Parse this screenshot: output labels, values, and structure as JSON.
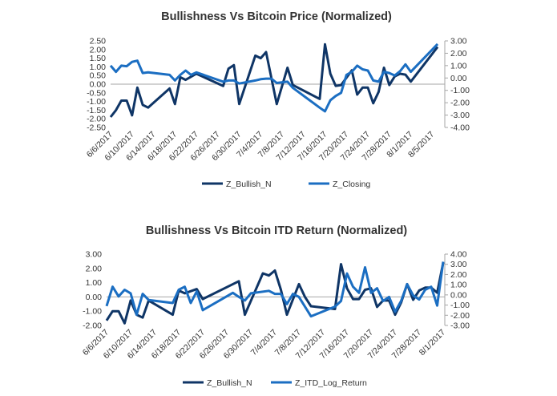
{
  "colors": {
    "bullish": "#0f3566",
    "second": "#1b6ec2",
    "axis": "#a6a6a6"
  },
  "chart_data": [
    {
      "type": "line",
      "title": "Bullishness Vs Bitcoin Price (Normalized)",
      "xlim": [
        "6/6/2017",
        "8/6/2017"
      ],
      "x_ticks": [
        "6/6/2017",
        "6/10/2017",
        "6/14/2017",
        "6/18/2017",
        "6/22/2017",
        "6/26/2017",
        "6/30/2017",
        "7/4/2017",
        "7/8/2017",
        "7/12/2017",
        "7/16/2017",
        "7/20/2017",
        "7/24/2017",
        "7/28/2017",
        "8/1/2017",
        "8/5/2017"
      ],
      "y_left": {
        "lim": [
          -2.5,
          2.5
        ],
        "ticks": [
          "2.50",
          "2.00",
          "1.50",
          "1.00",
          "0.50",
          "0.00",
          "-0.50",
          "-1.00",
          "-1.50",
          "-2.00",
          "-2.50"
        ]
      },
      "y_right": {
        "lim": [
          -4,
          3
        ],
        "ticks": [
          "3.00",
          "2.00",
          "1.00",
          "0.00",
          "-1.00",
          "-2.00",
          "-3.00",
          "-4.00"
        ]
      },
      "legend": "bottom",
      "grid": false,
      "series": [
        {
          "name": "Z_Bullish_N",
          "axis": "left",
          "points": [
            [
              "6/6/2017",
              -1.9
            ],
            [
              "6/7/2017",
              -1.5
            ],
            [
              "6/8/2017",
              -0.95
            ],
            [
              "6/9/2017",
              -0.95
            ],
            [
              "6/10/2017",
              -1.8
            ],
            [
              "6/11/2017",
              -0.2
            ],
            [
              "6/12/2017",
              -1.2
            ],
            [
              "6/13/2017",
              -1.35
            ],
            [
              "6/17/2017",
              -0.25
            ],
            [
              "6/18/2017",
              -1.15
            ],
            [
              "6/19/2017",
              0.4
            ],
            [
              "6/20/2017",
              0.25
            ],
            [
              "6/22/2017",
              0.6
            ],
            [
              "6/27/2017",
              -0.1
            ],
            [
              "6/28/2017",
              0.9
            ],
            [
              "6/29/2017",
              1.1
            ],
            [
              "6/30/2017",
              -1.15
            ],
            [
              "7/3/2017",
              1.65
            ],
            [
              "7/4/2017",
              1.5
            ],
            [
              "7/5/2017",
              1.85
            ],
            [
              "7/7/2017",
              -1.15
            ],
            [
              "7/9/2017",
              0.95
            ],
            [
              "7/10/2017",
              -0.05
            ],
            [
              "7/15/2017",
              -0.85
            ],
            [
              "7/16/2017",
              2.3
            ],
            [
              "7/17/2017",
              0.6
            ],
            [
              "7/18/2017",
              -0.1
            ],
            [
              "7/19/2017",
              -0.05
            ],
            [
              "7/21/2017",
              0.8
            ],
            [
              "7/22/2017",
              -0.6
            ],
            [
              "7/23/2017",
              -0.2
            ],
            [
              "7/24/2017",
              -0.2
            ],
            [
              "7/25/2017",
              -1.1
            ],
            [
              "7/26/2017",
              -0.45
            ],
            [
              "7/27/2017",
              0.95
            ],
            [
              "7/28/2017",
              -0.05
            ],
            [
              "7/29/2017",
              0.45
            ],
            [
              "7/30/2017",
              0.6
            ],
            [
              "7/31/2017",
              0.55
            ],
            [
              "8/1/2017",
              0.15
            ],
            [
              "8/6/2017",
              2.15
            ]
          ]
        },
        {
          "name": "Z_Closing",
          "axis": "right",
          "points": [
            [
              "6/6/2017",
              1.0
            ],
            [
              "6/7/2017",
              0.5
            ],
            [
              "6/8/2017",
              1.0
            ],
            [
              "6/9/2017",
              0.95
            ],
            [
              "6/10/2017",
              1.3
            ],
            [
              "6/11/2017",
              1.4
            ],
            [
              "6/12/2017",
              0.4
            ],
            [
              "6/13/2017",
              0.45
            ],
            [
              "6/17/2017",
              0.25
            ],
            [
              "6/18/2017",
              -0.2
            ],
            [
              "6/19/2017",
              0.25
            ],
            [
              "6/20/2017",
              0.6
            ],
            [
              "6/21/2017",
              0.25
            ],
            [
              "6/22/2017",
              0.45
            ],
            [
              "6/27/2017",
              -0.3
            ],
            [
              "6/28/2017",
              -0.2
            ],
            [
              "6/29/2017",
              -0.2
            ],
            [
              "6/30/2017",
              -0.45
            ],
            [
              "7/3/2017",
              -0.2
            ],
            [
              "7/4/2017",
              -0.1
            ],
            [
              "7/5/2017",
              -0.05
            ],
            [
              "7/6/2017",
              -0.05
            ],
            [
              "7/7/2017",
              -0.4
            ],
            [
              "7/9/2017",
              -0.3
            ],
            [
              "7/10/2017",
              -0.8
            ],
            [
              "7/15/2017",
              -2.4
            ],
            [
              "7/16/2017",
              -2.7
            ],
            [
              "7/17/2017",
              -1.8
            ],
            [
              "7/18/2017",
              -1.45
            ],
            [
              "7/19/2017",
              -1.2
            ],
            [
              "7/20/2017",
              0.25
            ],
            [
              "7/21/2017",
              0.5
            ],
            [
              "7/22/2017",
              1.0
            ],
            [
              "7/23/2017",
              0.7
            ],
            [
              "7/24/2017",
              0.6
            ],
            [
              "7/25/2017",
              -0.2
            ],
            [
              "7/26/2017",
              -0.3
            ],
            [
              "7/27/2017",
              0.5
            ],
            [
              "7/28/2017",
              0.4
            ],
            [
              "7/29/2017",
              0.2
            ],
            [
              "7/30/2017",
              0.55
            ],
            [
              "7/31/2017",
              1.1
            ],
            [
              "8/1/2017",
              0.5
            ],
            [
              "8/6/2017",
              2.75
            ]
          ]
        }
      ]
    },
    {
      "type": "line",
      "title": "Bullishness Vs Bitcoin ITD Return (Normalized)",
      "xlim": [
        "6/6/2017",
        "8/1/2017"
      ],
      "x_ticks": [
        "6/6/2017",
        "6/10/2017",
        "6/14/2017",
        "6/18/2017",
        "6/22/2017",
        "6/26/2017",
        "6/30/2017",
        "7/4/2017",
        "7/8/2017",
        "7/12/2017",
        "7/16/2017",
        "7/20/2017",
        "7/24/2017",
        "7/28/2017",
        "8/1/2017"
      ],
      "y_left": {
        "lim": [
          -2,
          3
        ],
        "ticks": [
          "3.00",
          "2.00",
          "1.00",
          "0.00",
          "-1.00",
          "-2.00"
        ]
      },
      "y_right": {
        "lim": [
          -3,
          4
        ],
        "ticks": [
          "4.00",
          "3.00",
          "2.00",
          "1.00",
          "0.00",
          "-1.00",
          "-2.00",
          "-3.00"
        ]
      },
      "legend": "bottom",
      "grid": false,
      "series": [
        {
          "name": "Z_Bullish_N",
          "axis": "left",
          "points": [
            [
              "6/6/2017",
              -1.65
            ],
            [
              "6/7/2017",
              -1.0
            ],
            [
              "6/8/2017",
              -1.0
            ],
            [
              "6/9/2017",
              -1.85
            ],
            [
              "6/10/2017",
              -0.25
            ],
            [
              "6/11/2017",
              -1.25
            ],
            [
              "6/12/2017",
              -1.45
            ],
            [
              "6/13/2017",
              -0.25
            ],
            [
              "6/17/2017",
              -1.25
            ],
            [
              "6/18/2017",
              0.45
            ],
            [
              "6/19/2017",
              0.25
            ],
            [
              "6/21/2017",
              0.55
            ],
            [
              "6/22/2017",
              -0.15
            ],
            [
              "6/28/2017",
              1.1
            ],
            [
              "6/29/2017",
              -1.25
            ],
            [
              "7/2/2017",
              1.65
            ],
            [
              "7/3/2017",
              1.5
            ],
            [
              "7/4/2017",
              1.85
            ],
            [
              "7/5/2017",
              0.5
            ],
            [
              "7/6/2017",
              -1.25
            ],
            [
              "7/8/2017",
              0.9
            ],
            [
              "7/9/2017",
              0.0
            ],
            [
              "7/10/2017",
              -0.65
            ],
            [
              "7/14/2017",
              -0.85
            ],
            [
              "7/15/2017",
              2.3
            ],
            [
              "7/16/2017",
              0.6
            ],
            [
              "7/17/2017",
              -0.15
            ],
            [
              "7/18/2017",
              -0.15
            ],
            [
              "7/19/2017",
              0.5
            ],
            [
              "7/20/2017",
              0.6
            ],
            [
              "7/21/2017",
              -0.7
            ],
            [
              "7/22/2017",
              -0.25
            ],
            [
              "7/23/2017",
              -0.25
            ],
            [
              "7/24/2017",
              -1.25
            ],
            [
              "7/25/2017",
              -0.4
            ],
            [
              "7/26/2017",
              0.9
            ],
            [
              "7/27/2017",
              -0.2
            ],
            [
              "7/28/2017",
              0.45
            ],
            [
              "7/29/2017",
              0.65
            ],
            [
              "7/30/2017",
              0.65
            ],
            [
              "7/31/2017",
              0.3
            ],
            [
              "8/1/2017",
              2.4
            ]
          ]
        },
        {
          "name": "Z_ITD_Log_Return",
          "axis": "right",
          "points": [
            [
              "6/6/2017",
              -1.1
            ],
            [
              "6/7/2017",
              0.8
            ],
            [
              "6/8/2017",
              -0.15
            ],
            [
              "6/9/2017",
              0.5
            ],
            [
              "6/10/2017",
              0.15
            ],
            [
              "6/11/2017",
              -1.95
            ],
            [
              "6/12/2017",
              0.1
            ],
            [
              "6/13/2017",
              -0.5
            ],
            [
              "6/17/2017",
              -0.8
            ],
            [
              "6/18/2017",
              0.5
            ],
            [
              "6/19/2017",
              0.8
            ],
            [
              "6/20/2017",
              -0.8
            ],
            [
              "6/21/2017",
              0.35
            ],
            [
              "6/22/2017",
              -1.5
            ],
            [
              "6/27/2017",
              0.2
            ],
            [
              "6/28/2017",
              -0.2
            ],
            [
              "6/29/2017",
              -0.55
            ],
            [
              "6/30/2017",
              0.15
            ],
            [
              "7/3/2017",
              0.4
            ],
            [
              "7/4/2017",
              0.1
            ],
            [
              "7/5/2017",
              0.1
            ],
            [
              "7/6/2017",
              -0.9
            ],
            [
              "7/7/2017",
              0.1
            ],
            [
              "7/8/2017",
              -0.2
            ],
            [
              "7/10/2017",
              -2.1
            ],
            [
              "7/14/2017",
              -1.15
            ],
            [
              "7/15/2017",
              -0.6
            ],
            [
              "7/16/2017",
              2.1
            ],
            [
              "7/17/2017",
              0.8
            ],
            [
              "7/18/2017",
              0.2
            ],
            [
              "7/19/2017",
              2.7
            ],
            [
              "7/20/2017",
              0.2
            ],
            [
              "7/21/2017",
              0.65
            ],
            [
              "7/22/2017",
              -0.6
            ],
            [
              "7/23/2017",
              -0.2
            ],
            [
              "7/24/2017",
              -1.65
            ],
            [
              "7/25/2017",
              -0.6
            ],
            [
              "7/26/2017",
              1.05
            ],
            [
              "7/27/2017",
              -0.05
            ],
            [
              "7/28/2017",
              -0.45
            ],
            [
              "7/29/2017",
              0.5
            ],
            [
              "7/30/2017",
              0.8
            ],
            [
              "7/31/2017",
              -1.05
            ],
            [
              "8/1/2017",
              3.25
            ]
          ]
        }
      ]
    }
  ]
}
